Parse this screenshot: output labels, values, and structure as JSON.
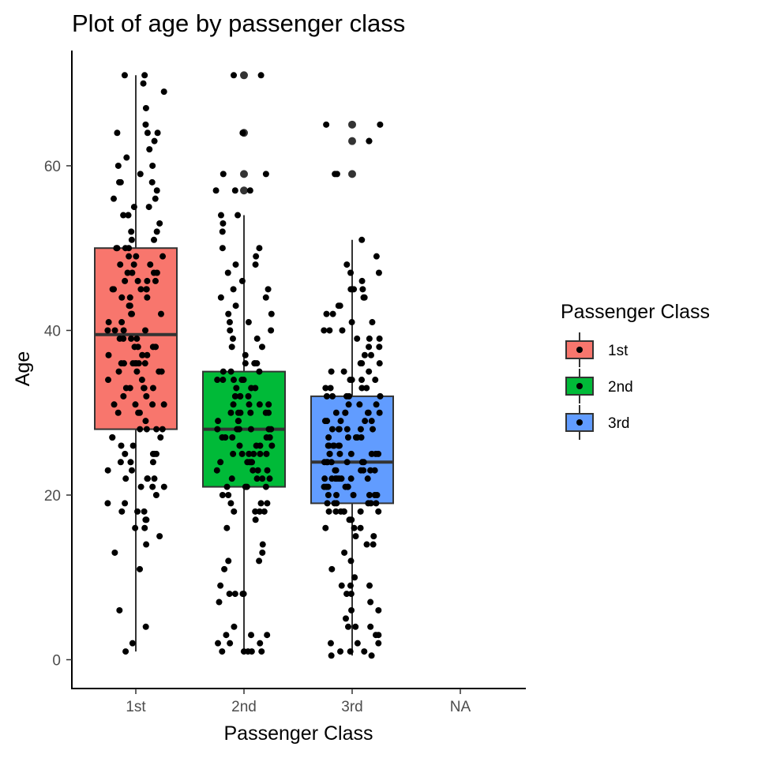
{
  "chart_data": {
    "type": "box",
    "title": "Plot of age by passenger class",
    "xlabel": "Passenger Class",
    "ylabel": "Age",
    "categories": [
      "1st",
      "2nd",
      "3rd",
      "NA"
    ],
    "ylim": [
      -3.5,
      74
    ],
    "yticks": [
      0,
      20,
      40,
      60
    ],
    "grid": false,
    "legend": {
      "title": "Passenger Class",
      "position": "right",
      "entries": [
        "1st",
        "2nd",
        "3rd"
      ]
    },
    "colors": {
      "1st": "#F8766D",
      "2nd": "#00BA38",
      "3rd": "#619CFF",
      "points": "#000000",
      "box_outline": "#333333"
    },
    "boxes": [
      {
        "category": "1st",
        "whisker_low": 1,
        "q1": 28,
        "median": 39.5,
        "q3": 50,
        "whisker_high": 71,
        "outliers": []
      },
      {
        "category": "2nd",
        "whisker_low": 1,
        "q1": 21,
        "median": 28,
        "q3": 35,
        "whisker_high": 54,
        "outliers": [
          57,
          59,
          64,
          71
        ]
      },
      {
        "category": "3rd",
        "whisker_low": 0.5,
        "q1": 19,
        "median": 24,
        "q3": 32,
        "whisker_high": 51,
        "outliers": [
          59,
          63,
          65
        ]
      }
    ],
    "points": {
      "1st": [
        71,
        71,
        70,
        69,
        67,
        65,
        64,
        64,
        64,
        63,
        62,
        61,
        60,
        60,
        59,
        58,
        58,
        58,
        57,
        56,
        56,
        55,
        55,
        54,
        54,
        54,
        53,
        52,
        52,
        51,
        51,
        50,
        50,
        50,
        49,
        49,
        49,
        48,
        48,
        48,
        47,
        47,
        47,
        46,
        46,
        46,
        46,
        45,
        45,
        45,
        45,
        44,
        44,
        44,
        43,
        43,
        42,
        42,
        42,
        41,
        41,
        40,
        40,
        40,
        40,
        39,
        39,
        39,
        38,
        38,
        38,
        38,
        37,
        37,
        37,
        36,
        36,
        36,
        36,
        36,
        36,
        35,
        35,
        35,
        35,
        34,
        34,
        33,
        33,
        33,
        33,
        32,
        32,
        31,
        31,
        31,
        30,
        30,
        29,
        28,
        28,
        28,
        27,
        27,
        27,
        26,
        26,
        25,
        25,
        25,
        24,
        24,
        24,
        23,
        23,
        22,
        22,
        22,
        21,
        21,
        21,
        20,
        19,
        19,
        18,
        18,
        18,
        17,
        17,
        16,
        16,
        15,
        14,
        13,
        11,
        6,
        4,
        2,
        1,
        45,
        47,
        50,
        36,
        33,
        31,
        30,
        28,
        22,
        39,
        25
      ],
      "2nd": [
        71,
        71,
        64,
        64,
        59,
        59,
        57,
        57,
        57,
        54,
        54,
        53,
        52,
        50,
        50,
        49,
        48,
        48,
        47,
        46,
        45,
        45,
        44,
        44,
        43,
        42,
        42,
        41,
        41,
        40,
        40,
        39,
        39,
        38,
        38,
        37,
        36,
        36,
        36,
        36,
        35,
        35,
        35,
        34,
        34,
        34,
        34,
        33,
        33,
        33,
        32,
        32,
        32,
        32,
        31,
        31,
        31,
        30,
        30,
        30,
        30,
        30,
        29,
        29,
        29,
        28,
        28,
        28,
        28,
        28,
        27,
        27,
        27,
        27,
        26,
        26,
        26,
        25,
        25,
        25,
        25,
        25,
        24,
        24,
        24,
        24,
        23,
        23,
        23,
        23,
        22,
        22,
        22,
        22,
        21,
        21,
        21,
        20,
        20,
        19,
        19,
        19,
        18,
        18,
        18,
        18,
        17,
        16,
        14,
        13,
        12,
        12,
        11,
        9,
        8,
        8,
        8,
        8,
        7,
        4,
        3,
        3,
        3,
        2,
        2,
        2,
        1,
        1,
        1,
        1,
        1,
        30,
        24,
        28,
        34,
        27,
        25,
        21,
        31,
        26
      ],
      "3rd": [
        65,
        65,
        63,
        63,
        59,
        59,
        51,
        49,
        48,
        47,
        47,
        46,
        45,
        45,
        45,
        45,
        44,
        44,
        43,
        43,
        42,
        42,
        41,
        41,
        40,
        40,
        40,
        39,
        39,
        39,
        38,
        38,
        37,
        37,
        36,
        36,
        36,
        35,
        35,
        35,
        34,
        34,
        34,
        34,
        33,
        33,
        33,
        32,
        32,
        32,
        32,
        32,
        31,
        31,
        31,
        30,
        30,
        30,
        30,
        30,
        29,
        29,
        29,
        29,
        28,
        28,
        28,
        28,
        28,
        27,
        27,
        27,
        27,
        26,
        26,
        26,
        26,
        26,
        25,
        25,
        25,
        25,
        25,
        25,
        24,
        24,
        24,
        24,
        24,
        24,
        23,
        23,
        23,
        23,
        23,
        22,
        22,
        22,
        22,
        22,
        22,
        21,
        21,
        21,
        21,
        21,
        20,
        20,
        20,
        20,
        20,
        19,
        19,
        19,
        19,
        19,
        18,
        18,
        18,
        18,
        18,
        18,
        17,
        17,
        17,
        16,
        16,
        16,
        15,
        15,
        14,
        14,
        13,
        12,
        11,
        10,
        9,
        9,
        9,
        8,
        8,
        7,
        6,
        6,
        5,
        4,
        4,
        4,
        3,
        3,
        2,
        2,
        2,
        1,
        1,
        1,
        0.5,
        0.5,
        28,
        24,
        22,
        19,
        26,
        21,
        33,
        29,
        23,
        18,
        25,
        30,
        20,
        27,
        22
      ]
    }
  }
}
